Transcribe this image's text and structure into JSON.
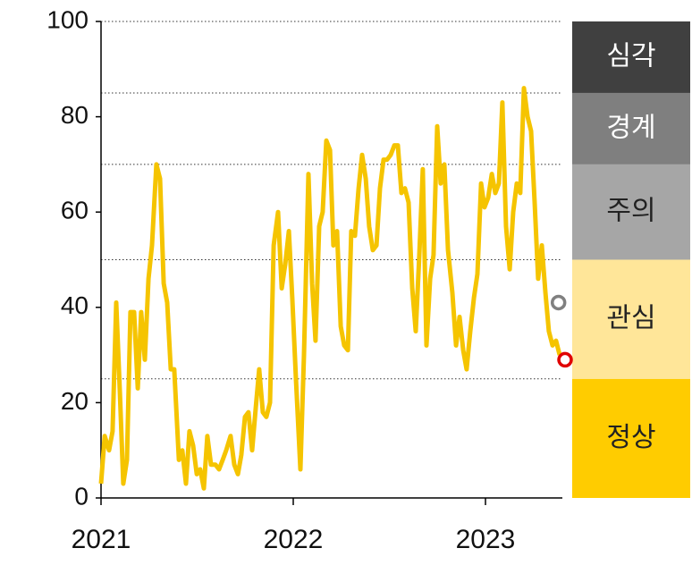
{
  "chart_data": {
    "type": "line",
    "xlim": [
      2021,
      2023.4
    ],
    "xticks": [
      2021,
      2022,
      2023
    ],
    "ylim": [
      0,
      100
    ],
    "yticks": [
      0,
      20,
      40,
      60,
      80,
      100
    ],
    "thresholds": [
      25,
      50,
      70,
      85,
      100
    ],
    "levels": [
      {
        "label": "정상",
        "color": "#ffcc00",
        "text_color": "#222222",
        "range": [
          0,
          25
        ]
      },
      {
        "label": "관심",
        "color": "#ffe699",
        "text_color": "#222222",
        "range": [
          25,
          50
        ]
      },
      {
        "label": "주의",
        "color": "#a6a6a6",
        "text_color": "#222222",
        "range": [
          50,
          70
        ]
      },
      {
        "label": "경계",
        "color": "#7f7f7f",
        "text_color": "#ffffff",
        "range": [
          70,
          85
        ]
      },
      {
        "label": "심각",
        "color": "#404040",
        "text_color": "#ffffff",
        "range": [
          85,
          100
        ]
      }
    ],
    "x": [
      2021,
      2021.019,
      2021.042,
      2021.06,
      2021.079,
      2021.098,
      2021.116,
      2021.135,
      2021.153,
      2021.172,
      2021.191,
      2021.209,
      2021.228,
      2021.247,
      2021.265,
      2021.288,
      2021.307,
      2021.326,
      2021.344,
      2021.363,
      2021.381,
      2021.405,
      2021.423,
      2021.442,
      2021.46,
      2021.479,
      2021.498,
      2021.516,
      2021.535,
      2021.553,
      2021.572,
      2021.595,
      2021.614,
      2021.633,
      2021.651,
      2021.674,
      2021.693,
      2021.712,
      2021.73,
      2021.749,
      2021.767,
      2021.786,
      2021.805,
      2021.823,
      2021.842,
      2021.86,
      2021.879,
      2021.898,
      2021.921,
      2021.94,
      2021.958,
      2021.977,
      2021.995,
      2022.014,
      2022.037,
      2022.056,
      2022.079,
      2022.098,
      2022.116,
      2022.135,
      2022.153,
      2022.172,
      2022.191,
      2022.209,
      2022.228,
      2022.247,
      2022.265,
      2022.284,
      2022.302,
      2022.321,
      2022.34,
      2022.358,
      2022.377,
      2022.395,
      2022.414,
      2022.433,
      2022.451,
      2022.47,
      2022.488,
      2022.507,
      2022.526,
      2022.544,
      2022.563,
      2022.581,
      2022.6,
      2022.619,
      2022.637,
      2022.656,
      2022.674,
      2022.693,
      2022.712,
      2022.73,
      2022.749,
      2022.767,
      2022.786,
      2022.805,
      2022.828,
      2022.847,
      2022.865,
      2022.884,
      2022.902,
      2022.921,
      2022.94,
      2022.958,
      2022.977,
      2022.995,
      2023.014,
      2023.033,
      2023.051,
      2023.07,
      2023.088,
      2023.107,
      2023.126,
      2023.144,
      2023.163,
      2023.181,
      2023.2,
      2023.219,
      2023.237,
      2023.256,
      2023.274,
      2023.293,
      2023.312,
      2023.33,
      2023.349,
      2023.367,
      2023.386
    ],
    "series": [
      {
        "color": "#f5c400",
        "values": [
          3,
          13,
          10,
          14,
          41,
          22,
          3,
          8,
          39,
          39,
          23,
          39,
          29,
          46,
          53,
          70,
          67,
          45,
          41,
          27,
          27,
          8,
          10,
          3,
          14,
          11,
          5,
          6,
          2,
          13,
          7,
          7,
          6,
          8,
          10,
          13,
          7,
          5,
          9,
          17,
          18,
          10,
          19,
          27,
          18,
          17,
          20,
          53,
          60,
          44,
          49,
          56,
          42,
          25,
          6,
          30,
          68,
          45,
          33,
          57,
          60,
          75,
          73,
          53,
          56,
          36,
          32,
          31,
          56,
          55,
          65,
          72,
          67,
          57,
          52,
          53,
          65,
          71,
          71,
          72,
          74,
          74,
          64,
          65,
          62,
          44,
          35,
          51,
          69,
          32,
          46,
          51,
          78,
          66,
          70,
          52,
          43,
          32,
          38,
          31,
          27,
          35,
          42,
          47,
          66,
          61,
          63,
          68,
          64,
          66,
          83,
          57,
          48,
          60,
          66,
          64,
          86,
          80,
          77,
          62,
          46,
          53,
          43,
          35,
          32,
          33,
          30
        ]
      }
    ],
    "markers": [
      {
        "x": 2023.38,
        "value": 41,
        "color": "#808080"
      },
      {
        "x": 2023.414,
        "value": 29,
        "color": "#e00000"
      }
    ]
  }
}
